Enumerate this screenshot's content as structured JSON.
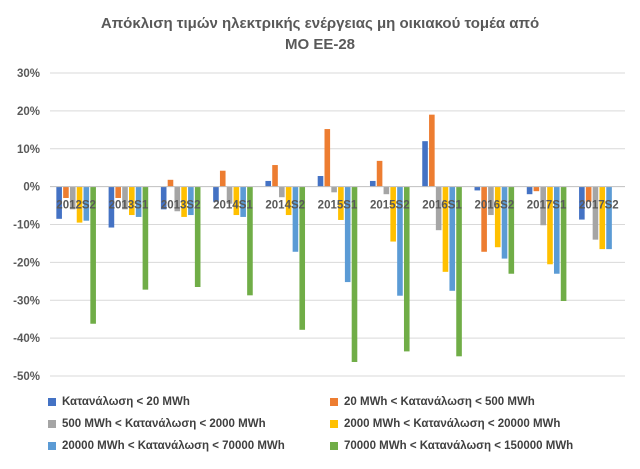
{
  "chart_data": {
    "type": "bar",
    "title_lines": [
      "Απόκλιση τιμών ηλεκτρικής ενέργειας μη οικιακού τομέα από",
      "ΜΟ ΕΕ-28"
    ],
    "xlabel": "",
    "ylabel": "",
    "ylim": [
      -50,
      30
    ],
    "yticks": [
      30,
      20,
      10,
      0,
      -10,
      -20,
      -30,
      -40,
      -50
    ],
    "ytick_labels": [
      "30%",
      "20%",
      "10%",
      "0%",
      "-10%",
      "-20%",
      "-30%",
      "-40%",
      "-50%"
    ],
    "grid": true,
    "legend_position": "bottom",
    "categories": [
      "2012S2",
      "2013S1",
      "2013S2",
      "2014S1",
      "2014S2",
      "2015S1",
      "2015S2",
      "2016S1",
      "2016S2",
      "2017S1",
      "2017S2"
    ],
    "series": [
      {
        "name": "Κατανάλωση < 20 MWh",
        "color": "#4472C4",
        "values": [
          -8.5,
          -10.8,
          -6,
          -4,
          1.5,
          2.8,
          1.5,
          12,
          -1,
          -2,
          -8.7
        ]
      },
      {
        "name": "20 MWh < Κατανάλωση < 500 MWh",
        "color": "#ED7D31",
        "values": [
          -3,
          -3,
          1.8,
          4.2,
          5.7,
          15.2,
          6.8,
          19,
          -17.2,
          -1.2,
          -4
        ]
      },
      {
        "name": "500 MWh < Κατανάλωση < 2000 MWh",
        "color": "#A5A5A5",
        "values": [
          -6,
          -6,
          -6.5,
          -4.5,
          -2.8,
          -1.5,
          -2,
          -11.5,
          -7.5,
          -10.2,
          -14
        ]
      },
      {
        "name": "2000 MWh < Κατανάλωση < 20000 MWh",
        "color": "#FFC000",
        "values": [
          -9.5,
          -7.5,
          -8,
          -7.5,
          -7.5,
          -8.8,
          -14.5,
          -22.5,
          -16,
          -20.5,
          -16.5
        ]
      },
      {
        "name": "20000 MWh < Κατανάλωση < 70000 MWh",
        "color": "#5B9BD5",
        "values": [
          -9,
          -8,
          -7.5,
          -8,
          -17.2,
          -25.2,
          -28.8,
          -27.5,
          -19,
          -23,
          -16.5
        ]
      },
      {
        "name": "70000 MWh < Κατανάλωση < 150000 MWh",
        "color": "#70AD47",
        "values": [
          -36.2,
          -27.2,
          -26.5,
          -28.7,
          -37.8,
          -46.3,
          -43.5,
          -44.8,
          -23,
          -30.2,
          null
        ]
      }
    ]
  }
}
